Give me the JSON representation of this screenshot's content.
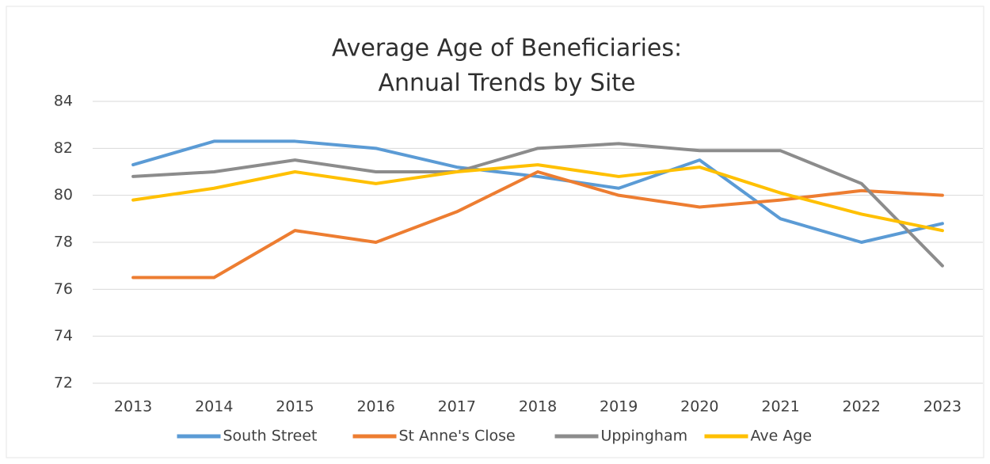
{
  "chart_data": {
    "type": "line",
    "title": [
      "Average Age of Beneficiaries:",
      "Annual Trends by Site"
    ],
    "categories": [
      "2013",
      "2014",
      "2015",
      "2016",
      "2017",
      "2018",
      "2019",
      "2020",
      "2021",
      "2022",
      "2023"
    ],
    "series": [
      {
        "name": "South Street",
        "color": "#5b9bd5",
        "values": [
          81.3,
          82.3,
          82.3,
          82.0,
          81.2,
          80.8,
          80.3,
          81.5,
          79.0,
          78.0,
          78.8
        ]
      },
      {
        "name": "St Anne's Close",
        "color": "#ed7d31",
        "values": [
          76.5,
          76.5,
          78.5,
          78.0,
          79.3,
          81.0,
          80.0,
          79.5,
          79.8,
          80.2,
          80.0
        ]
      },
      {
        "name": "Uppingham",
        "color": "#8c8c8c",
        "values": [
          80.8,
          81.0,
          81.5,
          81.0,
          81.0,
          82.0,
          82.2,
          81.9,
          81.9,
          80.5,
          77.0
        ]
      },
      {
        "name": "Ave Age",
        "color": "#ffc000",
        "values": [
          79.8,
          80.3,
          81.0,
          80.5,
          81.0,
          81.3,
          80.8,
          81.2,
          80.1,
          79.2,
          78.5
        ]
      }
    ],
    "ylim": [
      72,
      84
    ],
    "yticks": [
      72,
      74,
      76,
      78,
      80,
      82,
      84
    ],
    "grid": true,
    "legend": "bottom"
  }
}
